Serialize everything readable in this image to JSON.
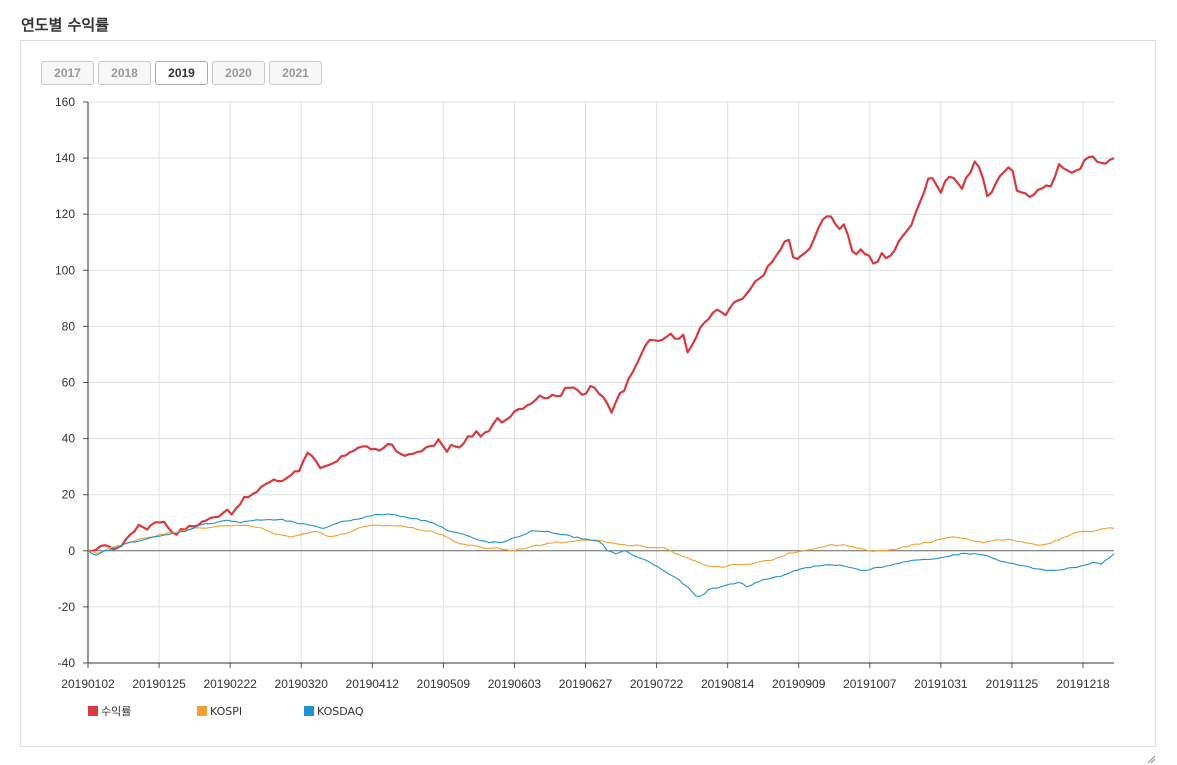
{
  "page": {
    "title": "연도별 수익률"
  },
  "tabs": [
    {
      "label": "2017",
      "active": false
    },
    {
      "label": "2018",
      "active": false
    },
    {
      "label": "2019",
      "active": true
    },
    {
      "label": "2020",
      "active": false
    },
    {
      "label": "2021",
      "active": false
    }
  ],
  "chart_data": {
    "type": "line",
    "title": "",
    "xlabel": "",
    "ylabel": "",
    "ylim": [
      -40,
      160
    ],
    "yticks": [
      -40,
      -20,
      0,
      20,
      40,
      60,
      80,
      100,
      120,
      140,
      160
    ],
    "xtick_labels": [
      "20190102",
      "20190125",
      "20190222",
      "20190320",
      "20190412",
      "20190509",
      "20190603",
      "20190627",
      "20190722",
      "20190814",
      "20190909",
      "20191007",
      "20191031",
      "20191125",
      "20191218"
    ],
    "grid": true,
    "legend": "bottom-left",
    "n_points": 244,
    "series": [
      {
        "name": "수익률",
        "color": "#d9383f",
        "keypoints": [
          [
            0,
            0
          ],
          [
            2,
            -1
          ],
          [
            4,
            3
          ],
          [
            6,
            1
          ],
          [
            8,
            1
          ],
          [
            10,
            2
          ],
          [
            12,
            6
          ],
          [
            15,
            9
          ],
          [
            17,
            8
          ],
          [
            20,
            11
          ],
          [
            22,
            10
          ],
          [
            25,
            6
          ],
          [
            28,
            8
          ],
          [
            31,
            9
          ],
          [
            34,
            11
          ],
          [
            37,
            12
          ],
          [
            40,
            15
          ],
          [
            42,
            13
          ],
          [
            45,
            19
          ],
          [
            47,
            19
          ],
          [
            50,
            23
          ],
          [
            53,
            25
          ],
          [
            56,
            25
          ],
          [
            58,
            27
          ],
          [
            61,
            29
          ],
          [
            63,
            35
          ],
          [
            65,
            33
          ],
          [
            67,
            29
          ],
          [
            69,
            30
          ],
          [
            72,
            32
          ],
          [
            75,
            35
          ],
          [
            78,
            37
          ],
          [
            81,
            37
          ],
          [
            84,
            35
          ],
          [
            86,
            38
          ],
          [
            88,
            38
          ],
          [
            90,
            34
          ],
          [
            93,
            34
          ],
          [
            96,
            36
          ],
          [
            99,
            37
          ],
          [
            102,
            40
          ],
          [
            103,
            34
          ],
          [
            105,
            38
          ],
          [
            107,
            36
          ],
          [
            109,
            40
          ],
          [
            112,
            42
          ],
          [
            114,
            41
          ],
          [
            116,
            43
          ],
          [
            118,
            47
          ],
          [
            120,
            46
          ],
          [
            123,
            50
          ],
          [
            125,
            51
          ],
          [
            128,
            53
          ],
          [
            130,
            55
          ],
          [
            133,
            55
          ],
          [
            136,
            55
          ],
          [
            138,
            59
          ],
          [
            141,
            58
          ],
          [
            143,
            54
          ],
          [
            145,
            59
          ],
          [
            147,
            57
          ],
          [
            150,
            52
          ],
          [
            151,
            49
          ],
          [
            153,
            56
          ],
          [
            155,
            58
          ],
          [
            157,
            64
          ],
          [
            159,
            69
          ],
          [
            161,
            74
          ],
          [
            163,
            75
          ],
          [
            165,
            75
          ],
          [
            168,
            77
          ],
          [
            170,
            75
          ],
          [
            172,
            78
          ],
          [
            173,
            70
          ],
          [
            175,
            75
          ],
          [
            177,
            80
          ],
          [
            180,
            84
          ],
          [
            182,
            86
          ],
          [
            184,
            84
          ],
          [
            186,
            88
          ],
          [
            188,
            89
          ],
          [
            190,
            91
          ],
          [
            192,
            95
          ],
          [
            195,
            99
          ],
          [
            198,
            104
          ],
          [
            200,
            108
          ],
          [
            202,
            112
          ],
          [
            203,
            105
          ],
          [
            205,
            104
          ],
          [
            207,
            106
          ],
          [
            209,
            110
          ],
          [
            211,
            116
          ],
          [
            213,
            119
          ],
          [
            215,
            120
          ],
          [
            216,
            114
          ],
          [
            218,
            117
          ],
          [
            220,
            110
          ],
          [
            221,
            104
          ],
          [
            223,
            107
          ],
          [
            225,
            105
          ],
          [
            227,
            102
          ],
          [
            229,
            106
          ],
          [
            231,
            104
          ],
          [
            233,
            108
          ],
          [
            235,
            112
          ],
          [
            236,
            115
          ],
          [
            237,
            113
          ],
          [
            238,
            118
          ],
          [
            239,
            122
          ],
          [
            241,
            127
          ],
          [
            242,
            132
          ],
          [
            244,
            133
          ],
          [
            246,
            128
          ],
          [
            248,
            134
          ],
          [
            250,
            133
          ],
          [
            252,
            129
          ],
          [
            254,
            134
          ],
          [
            256,
            139
          ],
          [
            258,
            135
          ],
          [
            259,
            125
          ],
          [
            261,
            129
          ],
          [
            263,
            134
          ],
          [
            265,
            136
          ],
          [
            267,
            136
          ],
          [
            268,
            128
          ],
          [
            270,
            127
          ],
          [
            272,
            126
          ],
          [
            274,
            129
          ],
          [
            276,
            130
          ],
          [
            278,
            130
          ],
          [
            280,
            138
          ],
          [
            282,
            135
          ],
          [
            284,
            135
          ],
          [
            286,
            135
          ],
          [
            288,
            141
          ],
          [
            290,
            141
          ],
          [
            292,
            138
          ],
          [
            294,
            138
          ],
          [
            296,
            140
          ]
        ]
      },
      {
        "name": "KOSPI",
        "color": "#f0a030",
        "keypoints": [
          [
            0,
            0
          ],
          [
            3,
            -1
          ],
          [
            6,
            1
          ],
          [
            10,
            2
          ],
          [
            14,
            4
          ],
          [
            18,
            5
          ],
          [
            22,
            6
          ],
          [
            26,
            7
          ],
          [
            30,
            8
          ],
          [
            34,
            8
          ],
          [
            38,
            9
          ],
          [
            42,
            9
          ],
          [
            46,
            9
          ],
          [
            50,
            8
          ],
          [
            54,
            6
          ],
          [
            58,
            5
          ],
          [
            62,
            6
          ],
          [
            66,
            7
          ],
          [
            70,
            5
          ],
          [
            74,
            6
          ],
          [
            78,
            8
          ],
          [
            82,
            9
          ],
          [
            86,
            9
          ],
          [
            90,
            9
          ],
          [
            94,
            8
          ],
          [
            98,
            7
          ],
          [
            102,
            6
          ],
          [
            106,
            3
          ],
          [
            110,
            2
          ],
          [
            114,
            1
          ],
          [
            118,
            1
          ],
          [
            122,
            0
          ],
          [
            126,
            1
          ],
          [
            130,
            2
          ],
          [
            134,
            3
          ],
          [
            138,
            3
          ],
          [
            142,
            4
          ],
          [
            146,
            4
          ],
          [
            150,
            3
          ],
          [
            154,
            2
          ],
          [
            158,
            2
          ],
          [
            162,
            1
          ],
          [
            166,
            1
          ],
          [
            170,
            -1
          ],
          [
            174,
            -3
          ],
          [
            178,
            -5
          ],
          [
            182,
            -6
          ],
          [
            186,
            -5
          ],
          [
            190,
            -5
          ],
          [
            194,
            -4
          ],
          [
            198,
            -3
          ],
          [
            202,
            -1
          ],
          [
            206,
            0
          ],
          [
            210,
            1
          ],
          [
            214,
            2
          ],
          [
            218,
            2
          ],
          [
            222,
            1
          ],
          [
            226,
            0
          ],
          [
            230,
            0
          ],
          [
            234,
            1
          ],
          [
            238,
            2
          ],
          [
            242,
            3
          ],
          [
            246,
            4
          ],
          [
            250,
            5
          ],
          [
            254,
            4
          ],
          [
            258,
            3
          ],
          [
            262,
            4
          ],
          [
            266,
            4
          ],
          [
            270,
            3
          ],
          [
            274,
            2
          ],
          [
            278,
            3
          ],
          [
            282,
            5
          ],
          [
            286,
            7
          ],
          [
            290,
            7
          ],
          [
            294,
            8
          ],
          [
            296,
            8
          ]
        ]
      },
      {
        "name": "KOSDAQ",
        "color": "#1f93cf",
        "keypoints": [
          [
            0,
            0
          ],
          [
            2,
            -2
          ],
          [
            5,
            0
          ],
          [
            8,
            1
          ],
          [
            12,
            3
          ],
          [
            16,
            4
          ],
          [
            20,
            5
          ],
          [
            24,
            6
          ],
          [
            28,
            7
          ],
          [
            32,
            9
          ],
          [
            36,
            10
          ],
          [
            40,
            11
          ],
          [
            44,
            10
          ],
          [
            48,
            11
          ],
          [
            52,
            11
          ],
          [
            56,
            11
          ],
          [
            60,
            10
          ],
          [
            64,
            9
          ],
          [
            68,
            8
          ],
          [
            72,
            10
          ],
          [
            76,
            11
          ],
          [
            80,
            12
          ],
          [
            84,
            13
          ],
          [
            88,
            13
          ],
          [
            92,
            12
          ],
          [
            96,
            11
          ],
          [
            100,
            10
          ],
          [
            104,
            7
          ],
          [
            108,
            6
          ],
          [
            112,
            4
          ],
          [
            116,
            3
          ],
          [
            120,
            3
          ],
          [
            124,
            5
          ],
          [
            128,
            7
          ],
          [
            132,
            7
          ],
          [
            136,
            6
          ],
          [
            140,
            5
          ],
          [
            144,
            4
          ],
          [
            148,
            3
          ],
          [
            150,
            0
          ],
          [
            152,
            -1
          ],
          [
            155,
            0
          ],
          [
            158,
            -2
          ],
          [
            162,
            -4
          ],
          [
            166,
            -7
          ],
          [
            170,
            -10
          ],
          [
            173,
            -13
          ],
          [
            176,
            -17
          ],
          [
            179,
            -14
          ],
          [
            182,
            -13
          ],
          [
            185,
            -12
          ],
          [
            188,
            -11
          ],
          [
            190,
            -13
          ],
          [
            193,
            -11
          ],
          [
            196,
            -10
          ],
          [
            200,
            -9
          ],
          [
            204,
            -7
          ],
          [
            208,
            -6
          ],
          [
            212,
            -5
          ],
          [
            216,
            -5
          ],
          [
            220,
            -6
          ],
          [
            224,
            -7
          ],
          [
            228,
            -6
          ],
          [
            232,
            -5
          ],
          [
            236,
            -4
          ],
          [
            240,
            -3
          ],
          [
            244,
            -3
          ],
          [
            248,
            -2
          ],
          [
            252,
            -1
          ],
          [
            256,
            -1
          ],
          [
            260,
            -2
          ],
          [
            264,
            -4
          ],
          [
            268,
            -5
          ],
          [
            272,
            -6
          ],
          [
            276,
            -7
          ],
          [
            280,
            -7
          ],
          [
            284,
            -6
          ],
          [
            288,
            -5
          ],
          [
            290,
            -4
          ],
          [
            292,
            -5
          ],
          [
            294,
            -3
          ],
          [
            296,
            -1
          ]
        ]
      }
    ]
  }
}
